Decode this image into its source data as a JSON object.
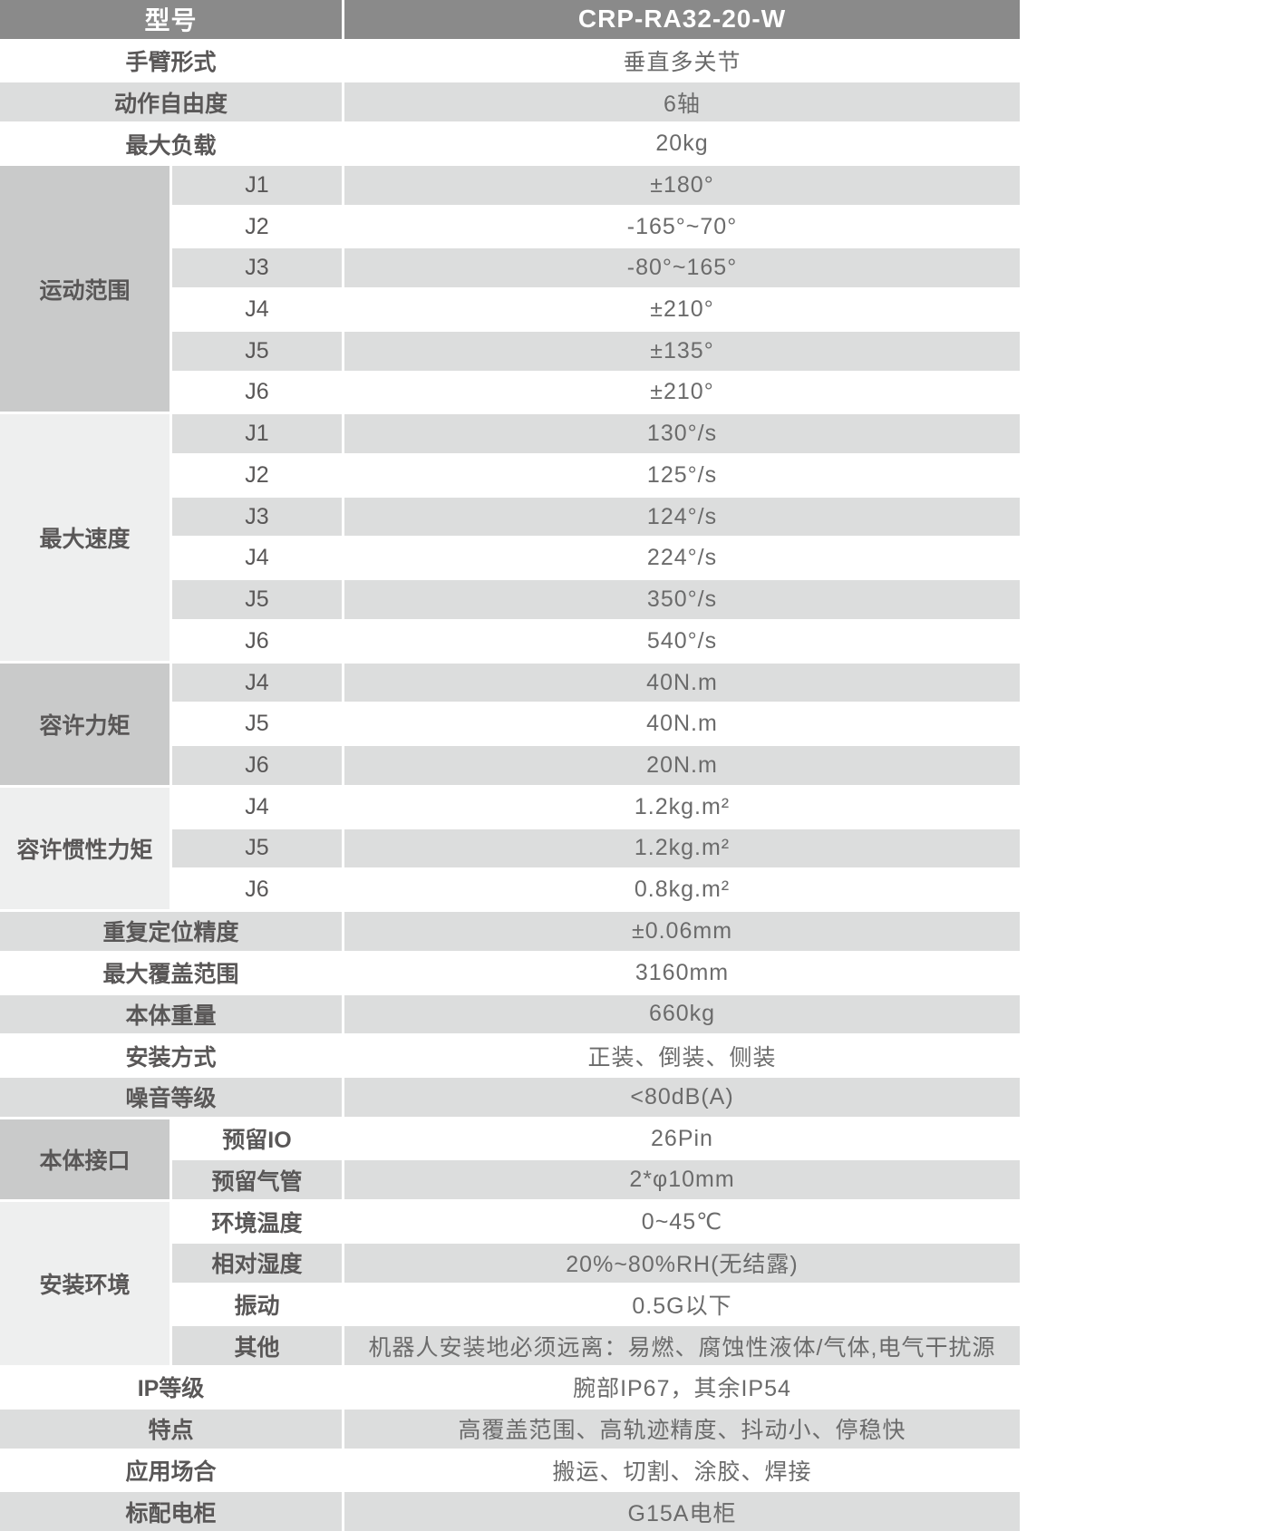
{
  "colors": {
    "header_bg": "#8a8a8a",
    "header_text": "#ffffff",
    "row_gray": "#dcdddd",
    "row_white": "#ffffff",
    "group_dark": "#c9caca",
    "group_light": "#eeefef",
    "label_text": "#595757",
    "value_text": "#6b6b6b"
  },
  "title_row": {
    "label": "型号",
    "value": "CRP-RA32-20-W"
  },
  "rows_top": [
    {
      "label": "手臂形式",
      "value": "垂直多关节"
    },
    {
      "label": "动作自由度",
      "value": "6轴"
    },
    {
      "label": "最大负载",
      "value": "20kg"
    }
  ],
  "motion_range": {
    "label": "运动范围",
    "items": [
      {
        "joint": "J1",
        "value": "±180°"
      },
      {
        "joint": "J2",
        "value": "-165°~70°"
      },
      {
        "joint": "J3",
        "value": "-80°~165°"
      },
      {
        "joint": "J4",
        "value": "±210°"
      },
      {
        "joint": "J5",
        "value": "±135°"
      },
      {
        "joint": "J6",
        "value": "±210°"
      }
    ]
  },
  "max_speed": {
    "label": "最大速度",
    "items": [
      {
        "joint": "J1",
        "value": "130°/s"
      },
      {
        "joint": "J2",
        "value": "125°/s"
      },
      {
        "joint": "J3",
        "value": "124°/s"
      },
      {
        "joint": "J4",
        "value": "224°/s"
      },
      {
        "joint": "J5",
        "value": "350°/s"
      },
      {
        "joint": "J6",
        "value": "540°/s"
      }
    ]
  },
  "allowable_torque": {
    "label": "容许力矩",
    "items": [
      {
        "joint": "J4",
        "value": "40N.m"
      },
      {
        "joint": "J5",
        "value": "40N.m"
      },
      {
        "joint": "J6",
        "value": "20N.m"
      }
    ]
  },
  "allowable_inertia": {
    "label": "容许惯性力矩",
    "items": [
      {
        "joint": "J4",
        "value": "1.2kg.m²"
      },
      {
        "joint": "J5",
        "value": "1.2kg.m²"
      },
      {
        "joint": "J6",
        "value": "0.8kg.m²"
      }
    ]
  },
  "rows_mid": [
    {
      "label": "重复定位精度",
      "value": "±0.06mm"
    },
    {
      "label": "最大覆盖范围",
      "value": "3160mm"
    },
    {
      "label": "本体重量",
      "value": "660kg"
    },
    {
      "label": "安装方式",
      "value": "正装、倒装、侧装"
    },
    {
      "label": "噪音等级",
      "value": "<80dB(A)"
    }
  ],
  "body_interface": {
    "label": "本体接口",
    "items": [
      {
        "sub": "预留IO",
        "value": "26Pin"
      },
      {
        "sub": "预留气管",
        "value": "2*φ10mm"
      }
    ]
  },
  "install_env": {
    "label": "安装环境",
    "items": [
      {
        "sub": "环境温度",
        "value": "0~45℃"
      },
      {
        "sub": "相对湿度",
        "value": "20%~80%RH(无结露)"
      },
      {
        "sub": "振动",
        "value": "0.5G以下"
      },
      {
        "sub": "其他",
        "value": "机器人安装地必须远离：易燃、腐蚀性液体/气体,电气干扰源"
      }
    ]
  },
  "rows_bottom": [
    {
      "label": "IP等级",
      "value": "腕部IP67，其余IP54"
    },
    {
      "label": "特点",
      "value": "高覆盖范围、高轨迹精度、抖动小、停稳快"
    },
    {
      "label": "应用场合",
      "value": "搬运、切割、涂胶、焊接"
    },
    {
      "label": "标配电柜",
      "value": "G15A电柜"
    }
  ]
}
